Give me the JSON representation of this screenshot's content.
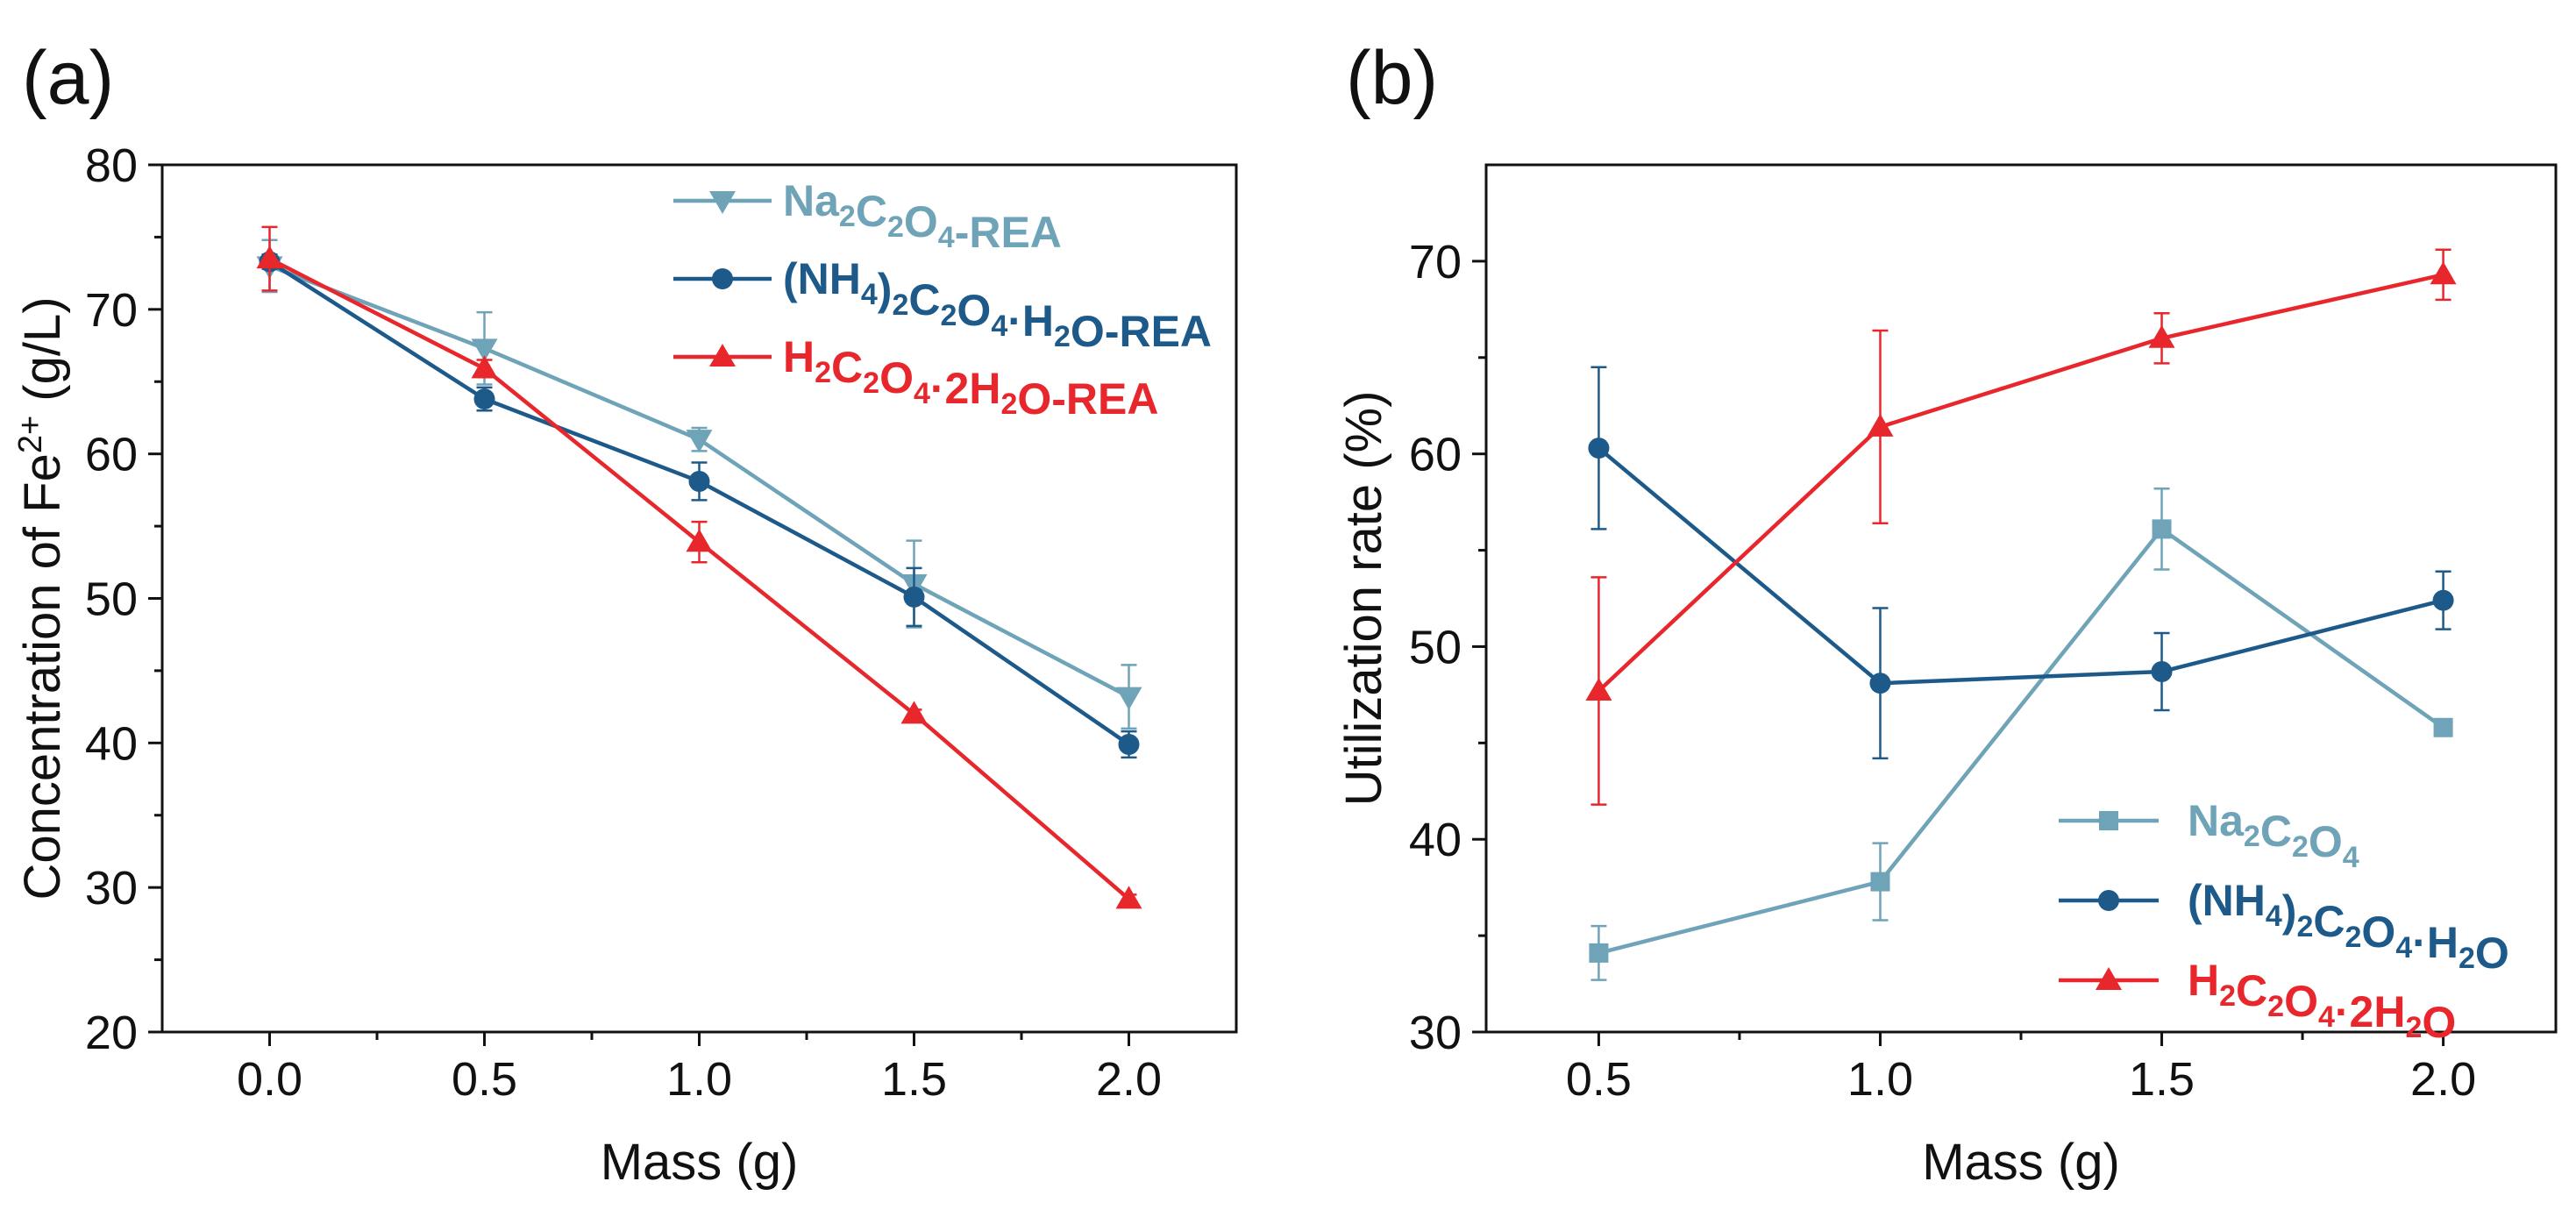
{
  "chart_data": [
    {
      "type": "line",
      "panel_label": "(a)",
      "xlabel": "Mass (g)",
      "ylabel_parts": [
        "Concentration of Fe",
        "2+",
        " (g/L)"
      ],
      "xlim": [
        -0.25,
        2.25
      ],
      "ylim": [
        20,
        80
      ],
      "x_ticks": [
        0.0,
        0.5,
        1.0,
        1.5,
        2.0
      ],
      "x_tick_labels": [
        "0.0",
        "0.5",
        "1.0",
        "1.5",
        "2.0"
      ],
      "y_ticks": [
        20,
        30,
        40,
        50,
        60,
        70,
        80
      ],
      "y_tick_labels": [
        "20",
        "30",
        "40",
        "50",
        "60",
        "70",
        "80"
      ],
      "legend_position": "top-right",
      "series": [
        {
          "name": "Na2C2O4-REA",
          "legend_parts": [
            [
              "Na",
              ""
            ],
            [
              "2",
              "sub"
            ],
            [
              "C",
              ""
            ],
            [
              "2",
              "sub"
            ],
            [
              "O",
              ""
            ],
            [
              "4",
              "sub"
            ],
            [
              "-REA",
              ""
            ]
          ],
          "color": "#6FA3B8",
          "marker": "triangle-down",
          "x": [
            0.0,
            0.5,
            1.0,
            1.5,
            2.0
          ],
          "y": [
            73.0,
            67.3,
            61.0,
            51.0,
            43.2
          ],
          "err": [
            1.8,
            2.5,
            0.8,
            3.0,
            2.2
          ]
        },
        {
          "name": "(NH4)2C2O4·H2O-REA",
          "legend_parts": [
            [
              "(NH",
              ""
            ],
            [
              "4",
              "sub"
            ],
            [
              ")",
              ""
            ],
            [
              "2",
              "sub"
            ],
            [
              "C",
              ""
            ],
            [
              "2",
              "sub"
            ],
            [
              "O",
              ""
            ],
            [
              "4",
              "sub"
            ],
            [
              "·H",
              ""
            ],
            [
              "2",
              "sub"
            ],
            [
              "O-REA",
              ""
            ]
          ],
          "color": "#1D5A8A",
          "marker": "circle",
          "x": [
            0.0,
            0.5,
            1.0,
            1.5,
            2.0
          ],
          "y": [
            73.3,
            63.8,
            58.1,
            50.1,
            39.9
          ],
          "err": [
            0.5,
            0.8,
            1.3,
            2.0,
            0.9
          ]
        },
        {
          "name": "H2C2O4·2H2O-REA",
          "legend_parts": [
            [
              "H",
              ""
            ],
            [
              "2",
              "sub"
            ],
            [
              "C",
              ""
            ],
            [
              "2",
              "sub"
            ],
            [
              "O",
              ""
            ],
            [
              "4",
              "sub"
            ],
            [
              "·2H",
              ""
            ],
            [
              "2",
              "sub"
            ],
            [
              "O-REA",
              ""
            ]
          ],
          "color": "#E8272D",
          "marker": "triangle-up",
          "x": [
            0.0,
            0.5,
            1.0,
            1.5,
            2.0
          ],
          "y": [
            73.5,
            65.9,
            53.9,
            42.0,
            29.2
          ],
          "err": [
            2.2,
            0.6,
            1.4,
            0.3,
            0.3
          ]
        }
      ]
    },
    {
      "type": "line",
      "panel_label": "(b)",
      "xlabel": "Mass (g)",
      "ylabel_parts": [
        "Utilization rate (%)"
      ],
      "xlim": [
        0.3,
        2.2
      ],
      "ylim": [
        30,
        75
      ],
      "x_ticks": [
        0.5,
        1.0,
        1.5,
        2.0
      ],
      "x_tick_labels": [
        "0.5",
        "1.0",
        "1.5",
        "2.0"
      ],
      "y_ticks": [
        30,
        40,
        50,
        60,
        70
      ],
      "y_tick_labels": [
        "30",
        "40",
        "50",
        "60",
        "70"
      ],
      "legend_position": "bottom-right",
      "series": [
        {
          "name": "Na2C2O4",
          "legend_parts": [
            [
              "Na",
              ""
            ],
            [
              "2",
              "sub"
            ],
            [
              "C",
              ""
            ],
            [
              "2",
              "sub"
            ],
            [
              "O",
              ""
            ],
            [
              "4",
              "sub"
            ]
          ],
          "color": "#6FA3B8",
          "marker": "square",
          "x": [
            0.5,
            1.0,
            1.5,
            2.0
          ],
          "y": [
            34.1,
            37.8,
            56.1,
            45.8
          ],
          "err": [
            1.4,
            2.0,
            2.1,
            0.4
          ]
        },
        {
          "name": "(NH4)2C2O4·H2O",
          "legend_parts": [
            [
              "(NH",
              ""
            ],
            [
              "4",
              "sub"
            ],
            [
              ")",
              ""
            ],
            [
              "2",
              "sub"
            ],
            [
              "C",
              ""
            ],
            [
              "2",
              "sub"
            ],
            [
              "O",
              ""
            ],
            [
              "4",
              "sub"
            ],
            [
              "·H",
              ""
            ],
            [
              "2",
              "sub"
            ],
            [
              "O",
              ""
            ]
          ],
          "color": "#1D5A8A",
          "marker": "circle",
          "x": [
            0.5,
            1.0,
            1.5,
            2.0
          ],
          "y": [
            60.3,
            48.1,
            48.7,
            52.4
          ],
          "err": [
            4.2,
            3.9,
            2.0,
            1.5
          ]
        },
        {
          "name": "H2C2O4·2H2O",
          "legend_parts": [
            [
              "H",
              ""
            ],
            [
              "2",
              "sub"
            ],
            [
              "C",
              ""
            ],
            [
              "2",
              "sub"
            ],
            [
              "O",
              ""
            ],
            [
              "4",
              "sub"
            ],
            [
              "·2H",
              ""
            ],
            [
              "2",
              "sub"
            ],
            [
              "O",
              ""
            ]
          ],
          "color": "#E8272D",
          "marker": "triangle-up",
          "x": [
            0.5,
            1.0,
            1.5,
            2.0
          ],
          "y": [
            47.7,
            61.4,
            66.0,
            69.3
          ],
          "err": [
            5.9,
            5.0,
            1.3,
            1.3
          ]
        }
      ]
    }
  ]
}
